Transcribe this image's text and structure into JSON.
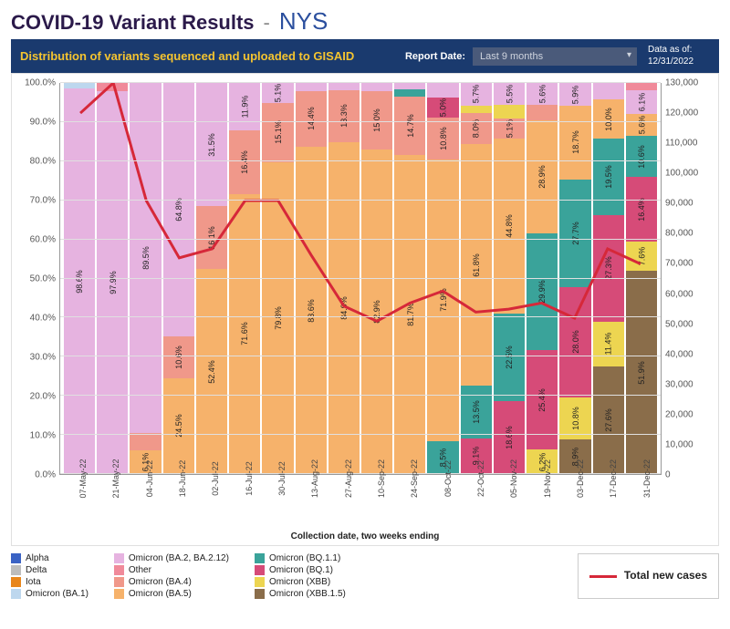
{
  "header": {
    "title": "COVID-19 Variant Results",
    "dash": "-",
    "region": "NYS"
  },
  "panel": {
    "subtitle": "Distribution of variants sequenced and uploaded to GISAID",
    "report_label": "Report Date:",
    "report_value": "Last 9 months",
    "asof_label": "Data as of:",
    "asof_value": "12/31/2022"
  },
  "chart": {
    "type": "stacked-bar-with-line",
    "y_left": {
      "min": 0,
      "max": 100,
      "step": 10,
      "suffix": "%",
      "format": "0.0"
    },
    "y_right": {
      "min": 0,
      "max": 130000,
      "step": 10000
    },
    "grid_color": "#e0e0e0",
    "background": "#ffffff",
    "x_label": "Collection date, two weeks ending",
    "categories": [
      "07-May-22",
      "21-May-22",
      "04-Jun-22",
      "18-Jun-22",
      "02-Jul-22",
      "16-Jul-22",
      "30-Jul-22",
      "13-Aug-22",
      "27-Aug-22",
      "10-Sep-22",
      "24-Sep-22",
      "08-Oct-22",
      "22-Oct-22",
      "05-Nov-22",
      "19-Nov-22",
      "03-Dec-22",
      "17-Dec-22",
      "31-Dec-22"
    ],
    "series_colors": {
      "Alpha": "#3a62c4",
      "Delta": "#bdbdbd",
      "Iota": "#e8861c",
      "Omicron (BA.1)": "#bdd7ee",
      "Omicron (BA.2, BA.2.12)": "#e6b3e0",
      "Other": "#f08a9a",
      "Omicron (BA.4)": "#f0988a",
      "Omicron (BA.5)": "#f6b26b",
      "Omicron (BQ.1.1)": "#3aa39a",
      "Omicron (BQ.1)": "#d64b78",
      "Omicron (XBB)": "#edd551",
      "Omicron (XBB.1.5)": "#8a6d4a"
    },
    "stacks": [
      [
        {
          "k": "Omicron (BA.2, BA.2.12)",
          "v": 98.6
        },
        {
          "k": "Omicron (BA.1)",
          "v": 1.4
        }
      ],
      [
        {
          "k": "Omicron (BA.2, BA.2.12)",
          "v": 97.9
        },
        {
          "k": "Other",
          "v": 2.1
        }
      ],
      [
        {
          "k": "Omicron (BA.5)",
          "v": 6.1
        },
        {
          "k": "Omicron (BA.4)",
          "v": 4.4
        },
        {
          "k": "Omicron (BA.2, BA.2.12)",
          "v": 89.5
        }
      ],
      [
        {
          "k": "Omicron (BA.5)",
          "v": 24.5
        },
        {
          "k": "Omicron (BA.4)",
          "v": 10.6
        },
        {
          "k": "Omicron (BA.2, BA.2.12)",
          "v": 64.8
        }
      ],
      [
        {
          "k": "Omicron (BA.5)",
          "v": 52.4
        },
        {
          "k": "Omicron (BA.4)",
          "v": 16.1
        },
        {
          "k": "Omicron (BA.2, BA.2.12)",
          "v": 31.5
        }
      ],
      [
        {
          "k": "Omicron (BA.5)",
          "v": 71.6
        },
        {
          "k": "Omicron (BA.4)",
          "v": 16.4
        },
        {
          "k": "Omicron (BA.2, BA.2.12)",
          "v": 11.9
        }
      ],
      [
        {
          "k": "Omicron (BA.5)",
          "v": 79.8
        },
        {
          "k": "Omicron (BA.4)",
          "v": 15.1
        },
        {
          "k": "Omicron (BA.2, BA.2.12)",
          "v": 5.1
        }
      ],
      [
        {
          "k": "Omicron (BA.5)",
          "v": 83.6
        },
        {
          "k": "Omicron (BA.4)",
          "v": 14.4
        },
        {
          "k": "Omicron (BA.2, BA.2.12)",
          "v": 2.0
        }
      ],
      [
        {
          "k": "Omicron (BA.5)",
          "v": 84.9
        },
        {
          "k": "Omicron (BA.4)",
          "v": 13.3
        },
        {
          "k": "Omicron (BA.2, BA.2.12)",
          "v": 1.8
        }
      ],
      [
        {
          "k": "Omicron (BA.5)",
          "v": 82.9
        },
        {
          "k": "Omicron (BA.4)",
          "v": 15.0
        },
        {
          "k": "Omicron (BA.2, BA.2.12)",
          "v": 2.1
        }
      ],
      [
        {
          "k": "Omicron (BA.5)",
          "v": 81.7
        },
        {
          "k": "Omicron (BA.4)",
          "v": 14.7
        },
        {
          "k": "Omicron (BQ.1.1)",
          "v": 2.0
        },
        {
          "k": "Omicron (BA.2, BA.2.12)",
          "v": 1.6
        }
      ],
      [
        {
          "k": "Omicron (BQ.1.1)",
          "v": 8.5
        },
        {
          "k": "Omicron (BA.5)",
          "v": 71.9
        },
        {
          "k": "Omicron (BA.4)",
          "v": 10.8
        },
        {
          "k": "Omicron (BQ.1)",
          "v": 5.0
        },
        {
          "k": "Omicron (BA.2, BA.2.12)",
          "v": 3.8
        }
      ],
      [
        {
          "k": "Omicron (BQ.1)",
          "v": 9.1
        },
        {
          "k": "Omicron (BQ.1.1)",
          "v": 13.5
        },
        {
          "k": "Omicron (BA.5)",
          "v": 61.8
        },
        {
          "k": "Omicron (BA.4)",
          "v": 8.0
        },
        {
          "k": "Omicron (XBB)",
          "v": 1.9
        },
        {
          "k": "Omicron (BA.2, BA.2.12)",
          "v": 5.7
        }
      ],
      [
        {
          "k": "Omicron (BQ.1)",
          "v": 18.6
        },
        {
          "k": "Omicron (BQ.1.1)",
          "v": 22.5
        },
        {
          "k": "Omicron (BA.5)",
          "v": 44.8
        },
        {
          "k": "Omicron (BA.4)",
          "v": 5.1
        },
        {
          "k": "Omicron (XBB)",
          "v": 3.5
        },
        {
          "k": "Omicron (BA.2, BA.2.12)",
          "v": 5.5
        }
      ],
      [
        {
          "k": "Omicron (XBB)",
          "v": 6.2
        },
        {
          "k": "Omicron (BQ.1)",
          "v": 25.4
        },
        {
          "k": "Omicron (BQ.1.1)",
          "v": 29.9
        },
        {
          "k": "Omicron (BA.5)",
          "v": 28.9
        },
        {
          "k": "Omicron (BA.4)",
          "v": 4.0
        },
        {
          "k": "Omicron (BA.2, BA.2.12)",
          "v": 5.6
        }
      ],
      [
        {
          "k": "Omicron (XBB.1.5)",
          "v": 8.9
        },
        {
          "k": "Omicron (XBB)",
          "v": 10.8
        },
        {
          "k": "Omicron (BQ.1)",
          "v": 28.0
        },
        {
          "k": "Omicron (BQ.1.1)",
          "v": 27.7
        },
        {
          "k": "Omicron (BA.5)",
          "v": 18.7
        },
        {
          "k": "Omicron (BA.2, BA.2.12)",
          "v": 5.9
        }
      ],
      [
        {
          "k": "Omicron (XBB.1.5)",
          "v": 27.6
        },
        {
          "k": "Omicron (XBB)",
          "v": 11.4
        },
        {
          "k": "Omicron (BQ.1)",
          "v": 27.3
        },
        {
          "k": "Omicron (BQ.1.1)",
          "v": 19.5
        },
        {
          "k": "Omicron (BA.5)",
          "v": 10.0
        },
        {
          "k": "Omicron (BA.2, BA.2.12)",
          "v": 4.2
        }
      ],
      [
        {
          "k": "Omicron (XBB.1.5)",
          "v": 51.9
        },
        {
          "k": "Omicron (XBB)",
          "v": 7.6
        },
        {
          "k": "Omicron (BQ.1)",
          "v": 16.4
        },
        {
          "k": "Omicron (BQ.1.1)",
          "v": 10.6
        },
        {
          "k": "Omicron (BA.5)",
          "v": 5.6
        },
        {
          "k": "Omicron (BA.2, BA.2.12)",
          "v": 6.1
        },
        {
          "k": "Other",
          "v": 1.8
        }
      ]
    ],
    "line": {
      "color": "#d62839",
      "width": 3,
      "label": "Total new cases",
      "values": [
        120000,
        130000,
        91000,
        72000,
        75000,
        91000,
        91000,
        73000,
        56000,
        51000,
        57000,
        61000,
        54000,
        55000,
        57000,
        52000,
        75000,
        70000
      ]
    }
  },
  "legend": {
    "cols": [
      [
        "Alpha",
        "Delta",
        "Iota",
        "Omicron (BA.1)"
      ],
      [
        "Omicron (BA.2, BA.2.12)",
        "Other",
        "Omicron (BA.4)",
        "Omicron (BA.5)"
      ],
      [
        "Omicron (BQ.1.1)",
        "Omicron (BQ.1)",
        "Omicron (XBB)",
        "Omicron (XBB.1.5)"
      ]
    ]
  }
}
